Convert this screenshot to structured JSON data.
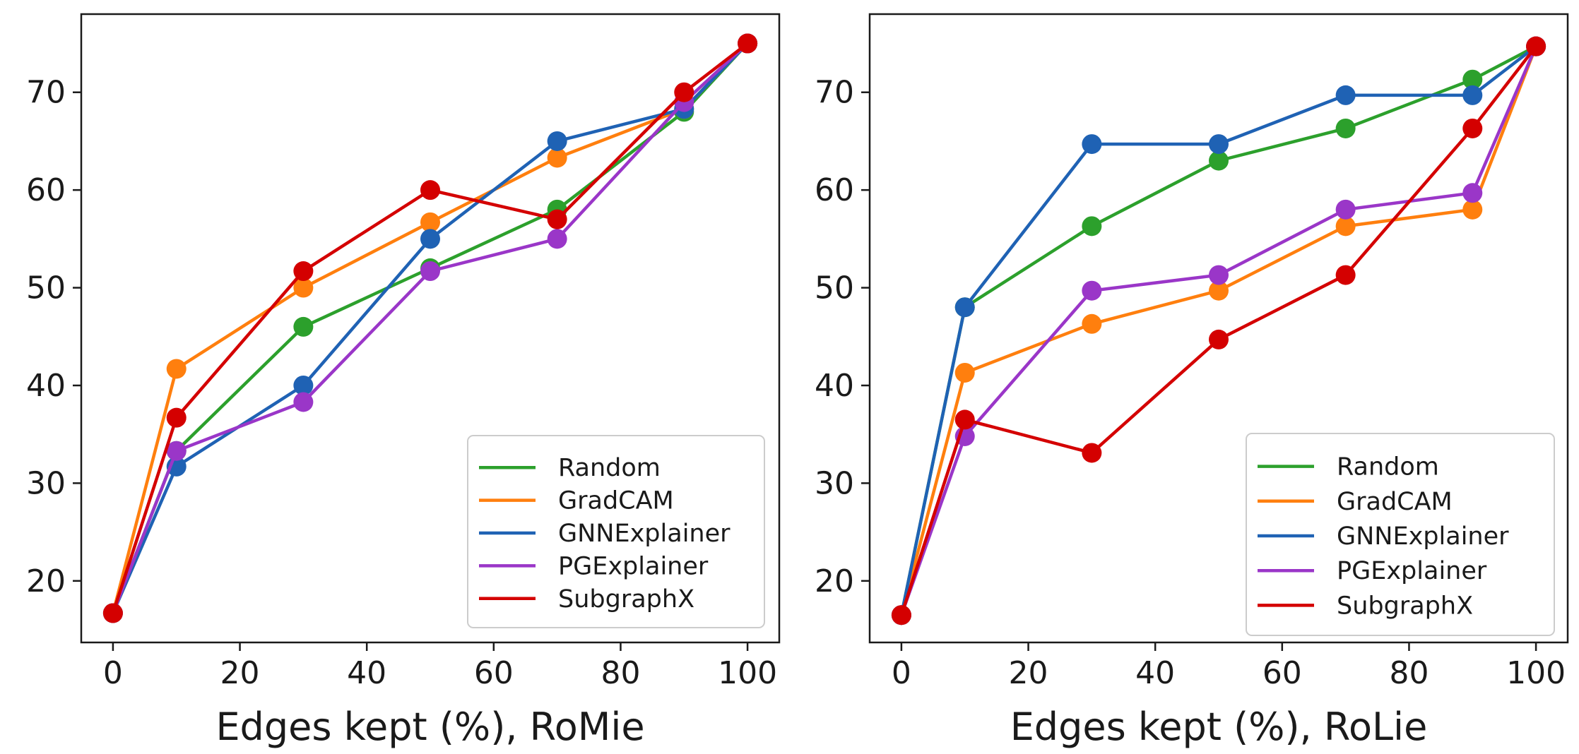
{
  "chart_data": [
    {
      "type": "line",
      "title": "",
      "xlabel": "Edges kept (%), RoMie",
      "ylabel": "",
      "xlim": [
        -5,
        105
      ],
      "ylim": [
        13.7,
        78.0
      ],
      "xticks": [
        0,
        20,
        40,
        60,
        80,
        100
      ],
      "yticks": [
        20,
        30,
        40,
        50,
        60,
        70
      ],
      "grid": false,
      "legend_position": "lower-right",
      "x": [
        0,
        10,
        30,
        50,
        70,
        90,
        100
      ],
      "series": [
        {
          "name": "Random",
          "color": "#2ca02c",
          "values": [
            16.7,
            33.3,
            46.0,
            52.0,
            58.0,
            68.0,
            75.0
          ]
        },
        {
          "name": "GradCAM",
          "color": "#ff7f0e",
          "values": [
            16.7,
            41.7,
            50.0,
            56.7,
            63.3,
            68.3,
            75.0
          ]
        },
        {
          "name": "GNNExplainer",
          "color": "#1f62b4",
          "values": [
            16.7,
            31.7,
            40.0,
            55.0,
            65.0,
            68.3,
            75.0
          ]
        },
        {
          "name": "PGExplainer",
          "color": "#9a36c8",
          "values": [
            16.7,
            33.3,
            38.3,
            51.7,
            55.0,
            69.0,
            75.0
          ]
        },
        {
          "name": "SubgraphX",
          "color": "#d40000",
          "values": [
            16.7,
            36.7,
            51.7,
            60.0,
            57.0,
            70.0,
            75.0
          ]
        }
      ]
    },
    {
      "type": "line",
      "title": "",
      "xlabel": "Edges kept (%), RoLie",
      "ylabel": "",
      "xlim": [
        -5,
        105
      ],
      "ylim": [
        13.7,
        78.0
      ],
      "xticks": [
        0,
        20,
        40,
        60,
        80,
        100
      ],
      "yticks": [
        20,
        30,
        40,
        50,
        60,
        70
      ],
      "grid": false,
      "legend_position": "lower-right",
      "x": [
        0,
        10,
        30,
        50,
        70,
        90,
        100
      ],
      "series": [
        {
          "name": "Random",
          "color": "#2ca02c",
          "values": [
            16.5,
            48.0,
            56.3,
            63.0,
            66.3,
            71.3,
            74.7
          ]
        },
        {
          "name": "GradCAM",
          "color": "#ff7f0e",
          "values": [
            16.5,
            41.3,
            46.3,
            49.7,
            56.3,
            58.0,
            74.7
          ]
        },
        {
          "name": "GNNExplainer",
          "color": "#1f62b4",
          "values": [
            16.5,
            48.0,
            64.7,
            64.7,
            69.7,
            69.7,
            74.7
          ]
        },
        {
          "name": "PGExplainer",
          "color": "#9a36c8",
          "values": [
            16.5,
            34.8,
            49.7,
            51.3,
            58.0,
            59.7,
            74.7
          ]
        },
        {
          "name": "SubgraphX",
          "color": "#d40000",
          "values": [
            16.5,
            36.5,
            33.1,
            44.7,
            51.3,
            66.3,
            74.7
          ]
        }
      ]
    }
  ]
}
